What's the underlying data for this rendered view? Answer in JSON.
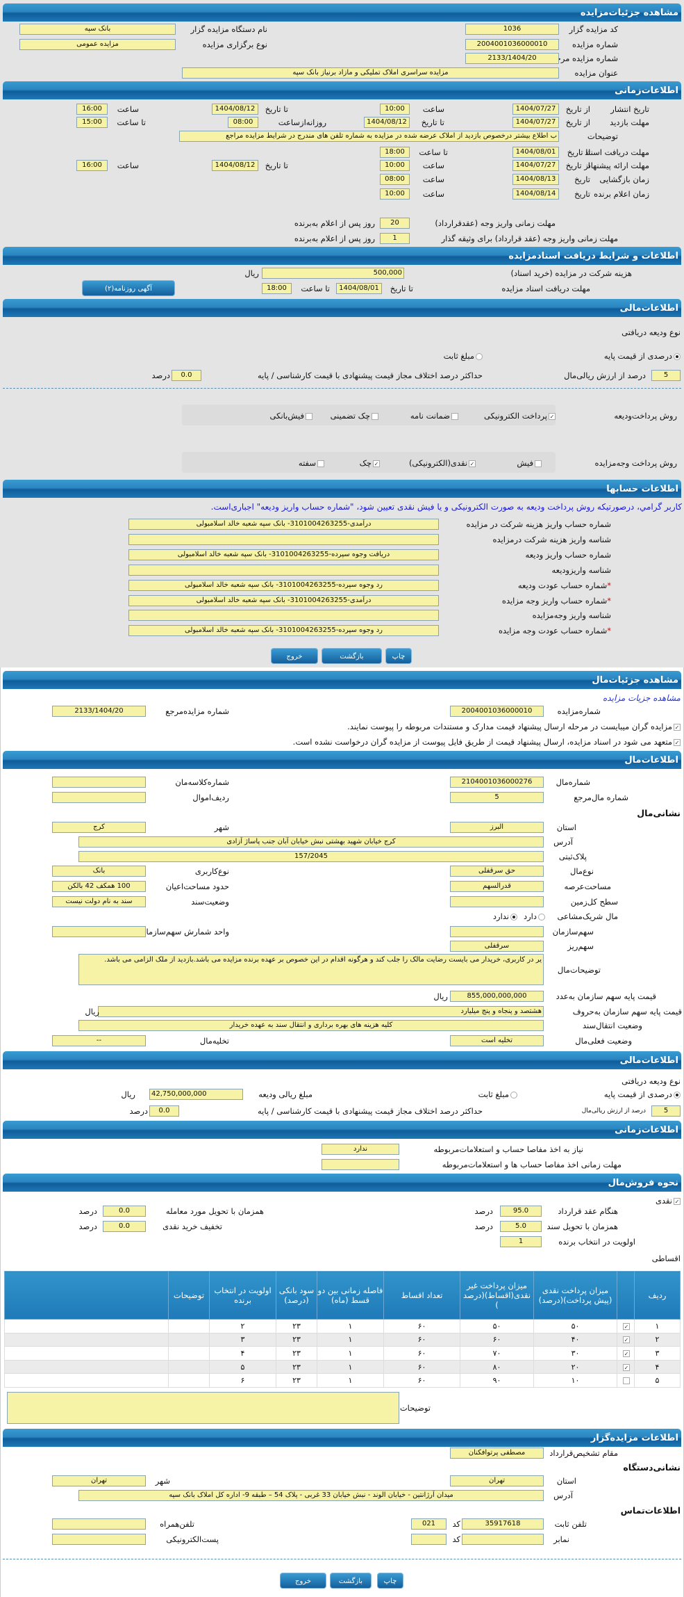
{
  "auction": {
    "header": "مشاهده جزئیات‌مزایده",
    "code_label": "کد مزایده گزار",
    "code": "1036",
    "org_label": "نام دستگاه مزایده گزار",
    "org": "بانک سپه",
    "number_label": "شماره مزایده",
    "number": "2004001036000010",
    "type_label": "نوع برگزاری مزایده",
    "type": "مزایده عمومی",
    "ref_label": "شماره مزایده مرجع",
    "ref": "2133/1404/20",
    "title_label": "عنوان مزایده",
    "title": "مزایده سراسری املاک تملیکی و مازاد برنیاز بانک سپه"
  },
  "time": {
    "header": "اطلاعات‌زمانی",
    "from_date": "از تاریخ",
    "to_date": "تا تاریخ",
    "date": "تاریخ",
    "hour": "ساعت",
    "to_hour": "تا ساعت",
    "daily_from": "روزانه‌ازساعت",
    "publish_label": "تاریخ انتشار",
    "publish_from": "1404/07/27",
    "publish_from_time": "10:00",
    "publish_to": "1404/08/12",
    "publish_to_time": "16:00",
    "visit_label": "مهلت بازدید",
    "visit_from": "1404/07/27",
    "visit_to": "1404/08/12",
    "visit_daily_from": "08:00",
    "visit_to_time": "15:00",
    "notes_label": "توضیحات",
    "notes": "ب اطلاع بیشتر درخصوص بازدید از املاک عرضه شده در مزایده به شماره تلفن های مندرج در شرایط مزایده مراجع",
    "docs_label": "مهلت دریافت اسناد",
    "docs_to": "1404/08/01",
    "docs_to_time": "18:00",
    "offer_label": "مهلت ارائه پیشنهاد",
    "offer_from": "1404/07/27",
    "offer_from_time": "10:00",
    "offer_to": "1404/08/12",
    "offer_to_time": "16:00",
    "opening_label": "زمان بازگشایی",
    "opening_date": "1404/08/13",
    "opening_time": "08:00",
    "winner_label": "زمان اعلام برنده",
    "winner_date": "1404/08/14",
    "winner_time": "10:00",
    "pay_label": "مهلت زمانی واریز وجه (عقدقرارداد)",
    "pay_days": "20",
    "days_after": "روز پس از اعلام به‌برنده",
    "pay2_label": "مهلت زمانی واریز وجه (عقد قرارداد) برای وثیقه گذار",
    "pay2_days": "1"
  },
  "docs": {
    "header": "اطلاعات و شرایط دریافت اسنادمزایده",
    "fee_label": "هزینه شرکت در مزایده (خرید اسناد)",
    "fee": "500,000",
    "rial": "ریال",
    "deadline_label": "مهلت دریافت اسناد مزایده",
    "to_date": "تا تاریخ",
    "date": "1404/08/01",
    "to_hour": "تا ساعت",
    "time": "18:00",
    "ad_button": "آگهی روزنامه(۲)"
  },
  "finance": {
    "header": "اطلاعات‌مالی",
    "deposit_type_label": "نوع ودیعه دریافتی",
    "opt_percent": "درصدی از قیمت پایه",
    "opt_fixed": "مبلغ ثابت",
    "selected": "درصدی از قیمت پایه",
    "percent": "5",
    "percent_label": "درصد از ارزش ریالی‌مال",
    "max_diff_label": "حداکثر درصد اختلاف مجاز قیمت پیشنهادی با قیمت کارشناسی / پایه",
    "max_diff": "0.0",
    "percent_unit": "درصد",
    "deposit_method_label": "روش پرداخت‌ودیعه",
    "deposit_methods": [
      {
        "label": "پرداخت الکترونیکی",
        "checked": true
      },
      {
        "label": "ضمانت نامه",
        "checked": false
      },
      {
        "label": "چک تضمینی",
        "checked": false
      },
      {
        "label": "فیش‌بانکی",
        "checked": false
      }
    ],
    "payment_method_label": "روش پرداخت وجه‌مزایده",
    "payment_methods": [
      {
        "label": "فیش",
        "checked": false
      },
      {
        "label": "نقدی(الکترونیکی)",
        "checked": true
      },
      {
        "label": "چک",
        "checked": true
      },
      {
        "label": "سفته",
        "checked": false
      }
    ]
  },
  "accounts": {
    "header": "اطلاعات حسابها",
    "notice": "کاربر گرامي، درصورتیکه روش پرداخت ودیعه به صورت الکترونیکی و یا فیش نقدی تعیین شود، \"شماره حساب واریز ودیعه\" اجباری‌است.",
    "rows": [
      {
        "label": "شماره حساب واریز هزینه شرکت در مزایده",
        "value": "درآمدی-3101004263255- بانک سپه شعبه خالد اسلامبولی",
        "required": false
      },
      {
        "label": "شناسه واریز هزینه شرکت درمزایده",
        "value": "",
        "required": false
      },
      {
        "label": "شماره حساب واریز ودیعه",
        "value": "دریافت وجوه سپرده-3101004263255- بانک سپه شعبه خالد اسلامبولی",
        "required": false
      },
      {
        "label": "شناسه واریزودیعه",
        "value": "",
        "required": false
      },
      {
        "label": "شماره حساب عودت ودیعه",
        "value": "رد وجوه سپرده-3101004263255- بانک سپه شعبه خالد اسلامبولی",
        "required": true
      },
      {
        "label": "شماره حساب واریز وجه مزایده",
        "value": "درآمدی-3101004263255- بانک سپه شعبه خالد اسلامبولی",
        "required": true
      },
      {
        "label": "شناسه واریز وجه‌مزایده",
        "value": "",
        "required": false
      },
      {
        "label": "شماره حساب عودت وجه مزایده",
        "value": "رد وجوه سپرده-3101004263255- بانک سپه شعبه خالد اسلامبولی",
        "required": true
      }
    ]
  },
  "buttons": {
    "print": "چاپ",
    "back": "بازگشت",
    "exit": "خروج"
  },
  "item": {
    "header": "مشاهده جزئیات‌مال",
    "link": "مشاهده جزیات مزایده",
    "auction_no_label": "شماره‌مزایده",
    "auction_no": "2004001036000010",
    "ref_label": "شماره مزایده‌مرجع",
    "ref": "2133/1404/20",
    "check1": "مزایده گران میبایست در مرحله ارسال پیشنهاد قیمت مدارک و مستندات مربوطه را پیوست نمایند.",
    "check2": "متعهد می شود در اسناد مزایده، ارسال پیشنهاد قیمت از طریق فایل پیوست از مزایده گران درخواست نشده است."
  },
  "property": {
    "header": "اطلاعات‌مال",
    "no_label": "شماره‌مال",
    "no": "2104001036000276",
    "class_label": "شماره‌کلاسه‌مان",
    "class": "",
    "ref_label": "شماره مال‌مرجع",
    "ref": "5",
    "row_label": "ردیف‌اموال",
    "row": "",
    "address_heading": "نشانی‌مال",
    "province_label": "استان",
    "province": "البرز",
    "city_label": "شهر",
    "city": "کرج",
    "address_label": "آدرس",
    "address": "کرج خیابان شهید بهشتی نبش خیابان آبان جنب پاساژ آزادی",
    "plate_label": "پلاک‌ثبتی",
    "plate": "157/2045",
    "kind_label": "نوع‌مال",
    "kind": "حق سرقفلی",
    "usage_label": "نوع‌کاربری",
    "usage": "بانک",
    "land_area_label": "مساحت‌عرصه",
    "land_area": "قدرالسهم",
    "building_area_label": "حدود مساحت‌اعیان",
    "building_area": "100 همکف 42 بالکن",
    "total_land_label": "سطح کل‌زمین",
    "total_land": "",
    "deed_status_label": "وضعیت‌سند",
    "deed_status": "سند به نام دولت نیست",
    "shared_label": "مال شریک‌مشاعی",
    "shared_yes": "دارد",
    "shared_no": "ندارد",
    "shared_selected": "ندارد",
    "org_share_label": "سهم‌سازمان",
    "org_share": "",
    "share_unit_label": "واحد شمارش سهم‌سازمان",
    "share_unit": "",
    "share_detail_label": "سهم‌ریز",
    "share_detail": "سرقفلی",
    "notes_label": "توضیحات‌مال",
    "notes": "یر در کاربری، خریدار می بایست رضایت مالک را جلب کند و هرگونه اقدام در این خصوص بر عهده برنده مزایده می باشد.بازدید از ملک الزامی می باشد.",
    "price_num_label": "قیمت پایه سهم سازمان به‌عدد",
    "price_num": "855,000,000,000",
    "rial": "ریال",
    "price_words_label": "قیمت پایه سهم سازمان به‌حروف",
    "price_words": "هشتصد و پنجاه و پنج میلیارد",
    "transfer_label": "وضعیت انتقال‌سند",
    "transfer": "کلیه هزینه های بهره برداری و انتقال سند به عهده خریدار",
    "current_label": "وضعیت فعلی‌مال",
    "current": "تخلیه است",
    "evac_label": "تخلیه‌مال",
    "evac": "--"
  },
  "finance2": {
    "header": "اطلاعات‌مالی",
    "deposit_type_label": "نوع ودیعه دریافتی",
    "opt_percent": "درصدی از قیمت پایه",
    "opt_fixed": "مبلغ ثابت",
    "selected": "درصدی از قیمت پایه",
    "deposit_amount_label": "مبلغ ریالی ودیعه",
    "deposit_amount": "42,750,000,000",
    "rial": "ریال",
    "percent": "5",
    "percent_label": "درصد از ارزش ریالی‌مال",
    "max_diff_label": "حداکثر درصد اختلاف مجاز قیمت پیشنهادی با قیمت کارشناسی / پایه",
    "max_diff": "0.0",
    "percent_unit": "درصد"
  },
  "time2": {
    "header": "اطلاعات‌زمانی",
    "clearance_label": "نیاز به اخذ مفاصا حساب و استعلامات‌مربوطه",
    "clearance": "ندارد",
    "clearance_deadline_label": "مهلت زمانی اخذ مفاصا حساب ها و استعلامات‌مربوطه",
    "clearance_deadline": ""
  },
  "sale": {
    "header": "نحوه فروش‌مال",
    "cash_label": "نقدی",
    "cash_checked": true,
    "percent_unit": "درصد",
    "contract_label": "هنگام عقد قرارداد",
    "contract": "95.0",
    "delivery_label": "همزمان با تحویل مورد معامله",
    "delivery": "0.0",
    "deed_label": "همزمان با تحویل سند",
    "deed": "5.0",
    "discount_label": "تخفیف خرید نقدی",
    "discount": "0.0",
    "priority_label": "اولویت در انتخاب برنده",
    "priority": "1",
    "installments_label": "اقساطی",
    "columns": [
      "ردیف",
      "",
      "میزان پرداخت نقدی (پیش پرداخت)(درصد)",
      "میزان پرداخت غیر نقدی(اقساط)(درصد )",
      "تعداد اقساط",
      "فاصله زمانی بین دو قسط (ماه)",
      "سود بانکی (درصد)",
      "اولویت در انتخاب برنده",
      "توضیحات",
      ""
    ],
    "rows": [
      {
        "no": "۱",
        "checked": true,
        "cash": "۵۰",
        "noncash": "۵۰",
        "count": "۶۰",
        "interval": "۱",
        "interest": "۲۳",
        "priority": "۲",
        "notes": ""
      },
      {
        "no": "۲",
        "checked": true,
        "cash": "۴۰",
        "noncash": "۶۰",
        "count": "۶۰",
        "interval": "۱",
        "interest": "۲۳",
        "priority": "۳",
        "notes": ""
      },
      {
        "no": "۳",
        "checked": true,
        "cash": "۳۰",
        "noncash": "۷۰",
        "count": "۶۰",
        "interval": "۱",
        "interest": "۲۳",
        "priority": "۴",
        "notes": ""
      },
      {
        "no": "۴",
        "checked": true,
        "cash": "۲۰",
        "noncash": "۸۰",
        "count": "۶۰",
        "interval": "۱",
        "interest": "۲۳",
        "priority": "۵",
        "notes": ""
      },
      {
        "no": "۵",
        "checked": false,
        "cash": "۱۰",
        "noncash": "۹۰",
        "count": "۶۰",
        "interval": "۱",
        "interest": "۲۳",
        "priority": "۶",
        "notes": ""
      }
    ],
    "notes_label": "توضیحات",
    "notes": ""
  },
  "auctioneer": {
    "header": "اطلاعات مزایده‌گزار",
    "authority_label": "مقام تشخیص‌قرارداد",
    "authority": "مصطفی پرتوافکنان",
    "address_heading": "نشانی‌دستگاه",
    "province_label": "استان",
    "province": "تهران",
    "city_label": "شهر",
    "city": "تهران",
    "address_label": "آدرس",
    "address": "میدان آرژانتین - خیابان الوند - نبش خیابان 33 غربی - پلاک 54 – طبقه 9- اداره کل املاک بانک سپه",
    "contact_heading": "اطلاعات‌تماس",
    "phone_label": "تلفن ثابت",
    "phone": "35917618",
    "code_label": "کد",
    "phone_code": "021",
    "mobile_label": "تلفن‌همراه",
    "mobile": "",
    "fax_label": "نمابر",
    "fax": "",
    "fax_code": "",
    "email_label": "پست‌الکترونیکی",
    "email": ""
  },
  "colors": {
    "header_blue": "#1f7ab8",
    "field_yellow": "#f6f2a6",
    "notice_blue": "#1a1adf",
    "required_red": "#dd0000"
  }
}
